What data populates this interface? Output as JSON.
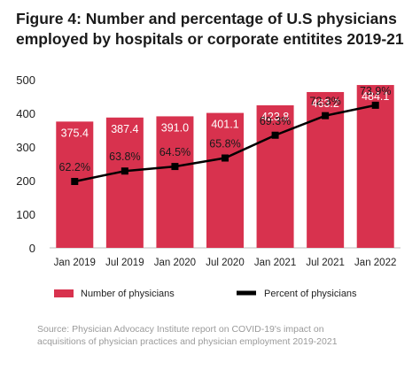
{
  "title_lines": [
    "Figure 4: Number and percentage of U.S physicians",
    "employed by hospitals or corporate entitites 2019-21"
  ],
  "source_lines": [
    "Source: Physician Advocacy Institute report on COVID-19's impact on",
    "acquisitions of physician practices and physician employment 2019-2021"
  ],
  "colors": {
    "bar": "#d8324e",
    "line": "#000000",
    "axis": "#bbbbbb"
  },
  "chart_data": {
    "type": "bar",
    "title": "Figure 4: Number and percentage of U.S physicians employed by hospitals or corporate entitites 2019-21",
    "categories": [
      "Jan 2019",
      "Jul 2019",
      "Jan 2020",
      "Jul 2020",
      "Jan 2021",
      "Jul 2021",
      "Jan 2022"
    ],
    "ylim": [
      0,
      500
    ],
    "yticks": [
      0,
      100,
      200,
      300,
      400,
      500
    ],
    "grid": false,
    "legend_position": "bottom",
    "series": [
      {
        "name": "Number of physicians",
        "type": "bar",
        "values": [
          375.4,
          387.4,
          391.0,
          401.1,
          423.8,
          463.2,
          484.1
        ],
        "labels": [
          "375.4",
          "387.4",
          "391.0",
          "401.1",
          "423.8",
          "463.2",
          "484.1"
        ]
      },
      {
        "name": "Percent of physicians",
        "type": "line",
        "values": [
          62.2,
          63.8,
          64.5,
          65.8,
          69.3,
          72.3,
          73.9
        ],
        "labels": [
          "62.2%",
          "63.8%",
          "64.5%",
          "65.8%",
          "69.3%",
          "72.3%",
          "73.9%"
        ]
      }
    ]
  }
}
